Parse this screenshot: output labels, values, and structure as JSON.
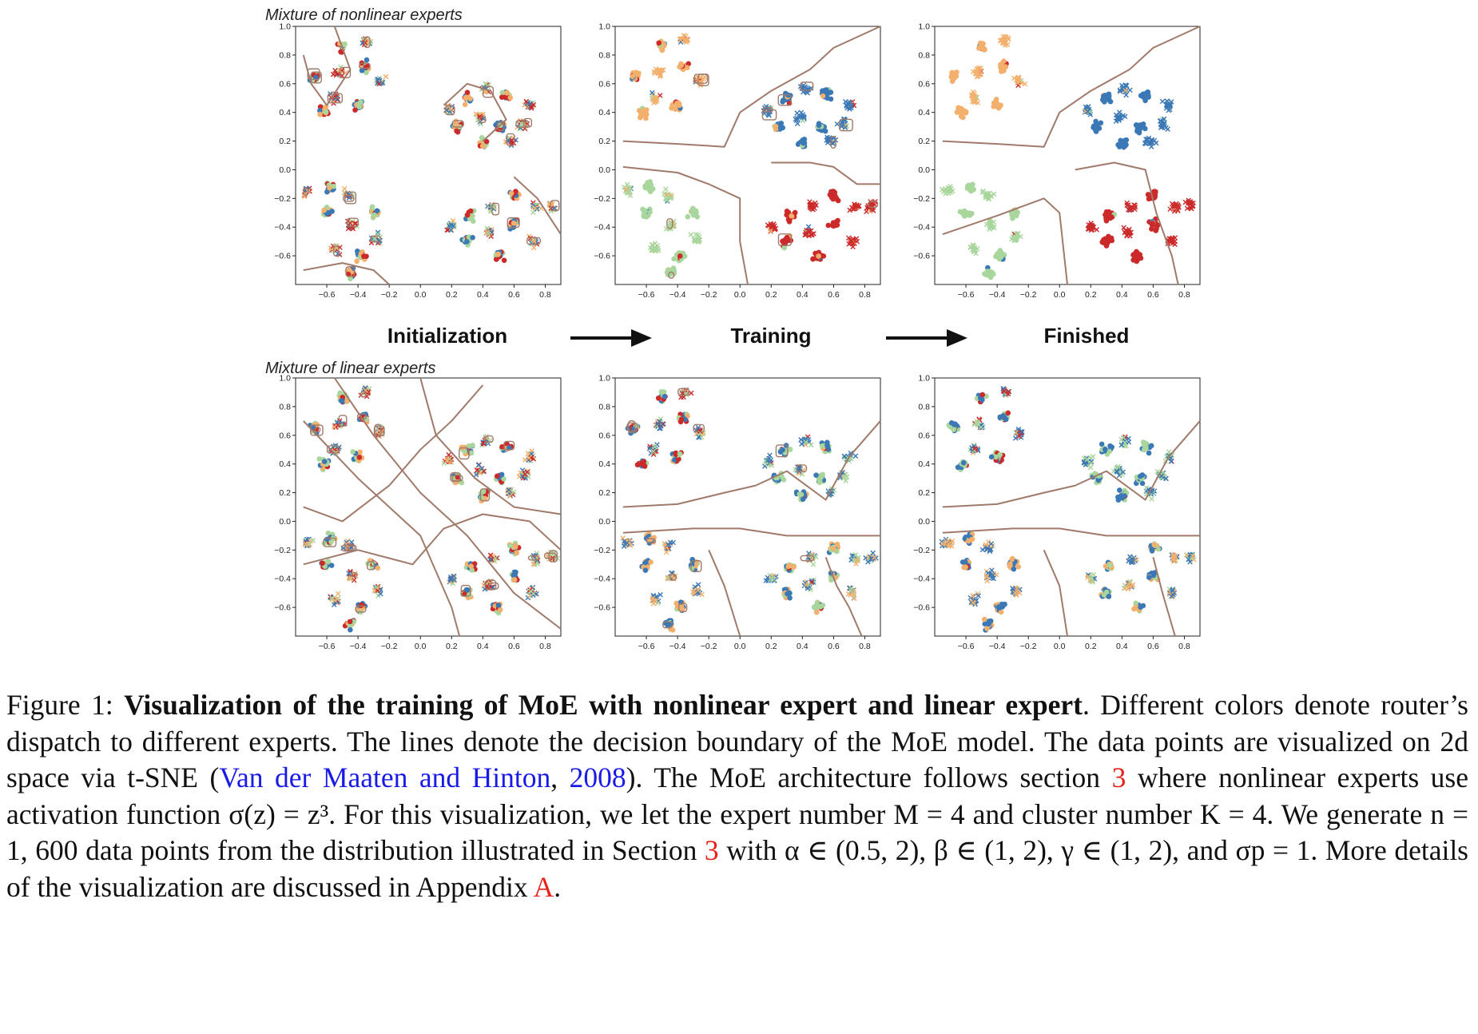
{
  "figure": {
    "row1_title": "Mixture of nonlinear experts",
    "row2_title": "Mixture of linear experts",
    "stages": [
      "Initialization",
      "Training",
      "Finished"
    ],
    "x_ticks": [
      "−0.6",
      "−0.4",
      "−0.2",
      "0.0",
      "0.2",
      "0.4",
      "0.6",
      "0.8"
    ],
    "y_ticks": [
      "1.0",
      "0.8",
      "0.6",
      "0.4",
      "0.2",
      "0.0",
      "−0.2",
      "−0.4",
      "−0.6"
    ],
    "expert_colors": {
      "blue": "#3a78b6",
      "orange": "#f2b06c",
      "green": "#a9d69c",
      "red": "#cc2a2a"
    },
    "boundary_color": "#a07a6a"
  },
  "chart_data": {
    "type": "scatter",
    "xlim": [
      -0.8,
      0.9
    ],
    "ylim": [
      -0.8,
      1.0
    ],
    "grid": false,
    "panels": [
      {
        "row": "Mixture of nonlinear experts",
        "stage": "Initialization"
      },
      {
        "row": "Mixture of nonlinear experts",
        "stage": "Training"
      },
      {
        "row": "Mixture of nonlinear experts",
        "stage": "Finished"
      },
      {
        "row": "Mixture of linear experts",
        "stage": "Initialization"
      },
      {
        "row": "Mixture of linear experts",
        "stage": "Training"
      },
      {
        "row": "Mixture of linear experts",
        "stage": "Finished"
      }
    ],
    "clusters": [
      {
        "quadrant": "top-left",
        "center": [
          -0.45,
          0.55
        ]
      },
      {
        "quadrant": "top-right",
        "center": [
          0.45,
          0.4
        ]
      },
      {
        "quadrant": "bottom-left",
        "center": [
          -0.45,
          -0.35
        ]
      },
      {
        "quadrant": "bottom-right",
        "center": [
          0.45,
          -0.35
        ]
      }
    ]
  },
  "caption": {
    "fig_label": "Figure 1:",
    "bold_title": "Visualization of the training of MoE with nonlinear expert and linear expert",
    "s1": ". Different colors denote router’s dispatch to different experts. The lines denote the decision boundary of the MoE model. The data points are visualized on 2d space via t-SNE (",
    "cite": "Van der Maaten and Hinton",
    "comma": ", ",
    "year": "2008",
    "s2": "). The MoE architecture follows section ",
    "ref1": "3",
    "s3": " where nonlinear experts use activation function σ(z) = z³. For this visualization, we let the expert number M = 4 and cluster number K = 4. We generate n = 1, 600 data points from the distribution illustrated in Section ",
    "ref2": "3",
    "s4": " with α ∈ (0.5, 2), β ∈ (1, 2), γ ∈ (1, 2), and σp = 1. More details of the visualization are discussed in Appendix ",
    "ref3": "A",
    "s5": "."
  }
}
